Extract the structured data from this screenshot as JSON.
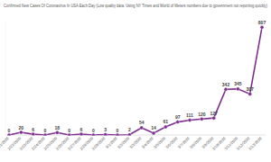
{
  "chart_data": {
    "type": "line",
    "title": "Confirmed New Cases Of Coronavirus In USA Each Day (Low quality data: Using NY Times and World of Meters numbers due to government not reporting quickly)",
    "categories": [
      "2/21/2020",
      "2/22/2020",
      "2/23/2020",
      "2/24/2020",
      "2/25/2020",
      "2/26/2020",
      "2/27/2020",
      "2/28/2020",
      "2/29/2020",
      "3/1/2020",
      "3/2/2020",
      "3/3/2020",
      "3/4/2020",
      "3/5/2020",
      "3/6/2020",
      "3/7/2020",
      "3/8/2020",
      "3/9/2020",
      "3/10/2020",
      "3/11/2020",
      "3/12/2020",
      "3/13/2020"
    ],
    "values": [
      0,
      20,
      6,
      0,
      18,
      0,
      6,
      0,
      3,
      0,
      2,
      54,
      14,
      61,
      97,
      111,
      120,
      127,
      342,
      345,
      307,
      807
    ],
    "color": "#7e2f8e",
    "marker": "circle",
    "ylim": [
      0,
      850
    ],
    "grid": false,
    "data_labels": true,
    "tick_labels": "x"
  }
}
